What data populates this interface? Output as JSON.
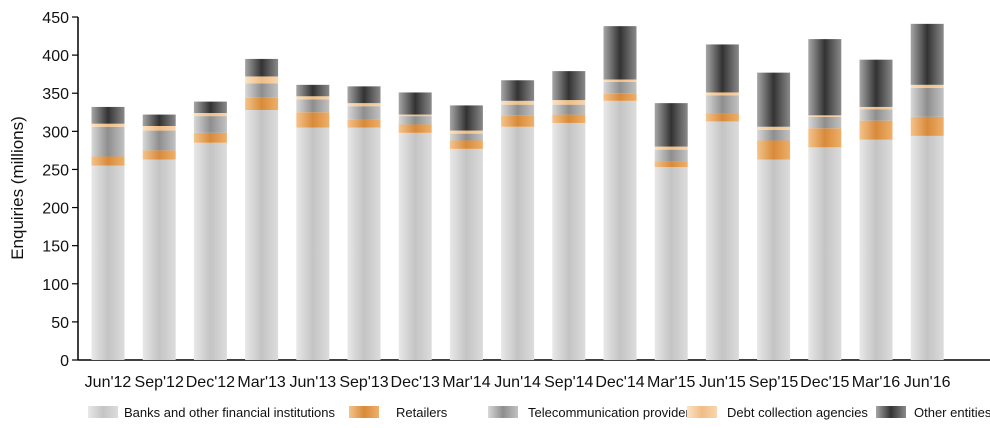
{
  "chart_data": {
    "type": "bar",
    "stacked": true,
    "title": "",
    "xlabel": "",
    "ylabel": "Enquiries (millions)",
    "ylim": [
      0,
      450
    ],
    "yticks": [
      0,
      50,
      100,
      150,
      200,
      250,
      300,
      350,
      400,
      450
    ],
    "grid": false,
    "legend_position": "bottom",
    "categories": [
      "Jun'12",
      "Sep'12",
      "Dec'12",
      "Mar'13",
      "Jun'13",
      "Sep'13",
      "Dec'13",
      "Mar'14",
      "Jun'14",
      "Sep'14",
      "Dec'14",
      "Mar'15",
      "Jun'15",
      "Sep'15",
      "Dec'15",
      "Mar'16",
      "Jun'16"
    ],
    "series": [
      {
        "name": "Banks and other financial institutions",
        "color": "#c9c9c9",
        "values": [
          255,
          263,
          285,
          328,
          305,
          305,
          298,
          277,
          306,
          311,
          340,
          253,
          313,
          263,
          279,
          289,
          294
        ]
      },
      {
        "name": "Retailers",
        "color": "#e39a4c",
        "values": [
          12,
          12,
          13,
          16,
          20,
          10,
          11,
          11,
          15,
          11,
          10,
          8,
          11,
          25,
          25,
          25,
          25
        ]
      },
      {
        "name": "Telecommunication providers",
        "color": "#a3a3a3",
        "values": [
          39,
          26,
          22,
          19,
          17,
          18,
          11,
          9,
          14,
          13,
          15,
          15,
          23,
          14,
          15,
          15,
          38
        ]
      },
      {
        "name": "Debt collection agencies",
        "color": "#f2c89a",
        "values": [
          4,
          6,
          4,
          9,
          4,
          4,
          2,
          4,
          5,
          6,
          3,
          4,
          4,
          4,
          2,
          3,
          4
        ]
      },
      {
        "name": "Other entities",
        "color": "#4b4b4b",
        "values": [
          22,
          15,
          15,
          23,
          15,
          22,
          29,
          33,
          27,
          38,
          70,
          57,
          63,
          71,
          100,
          62,
          80
        ]
      }
    ]
  }
}
